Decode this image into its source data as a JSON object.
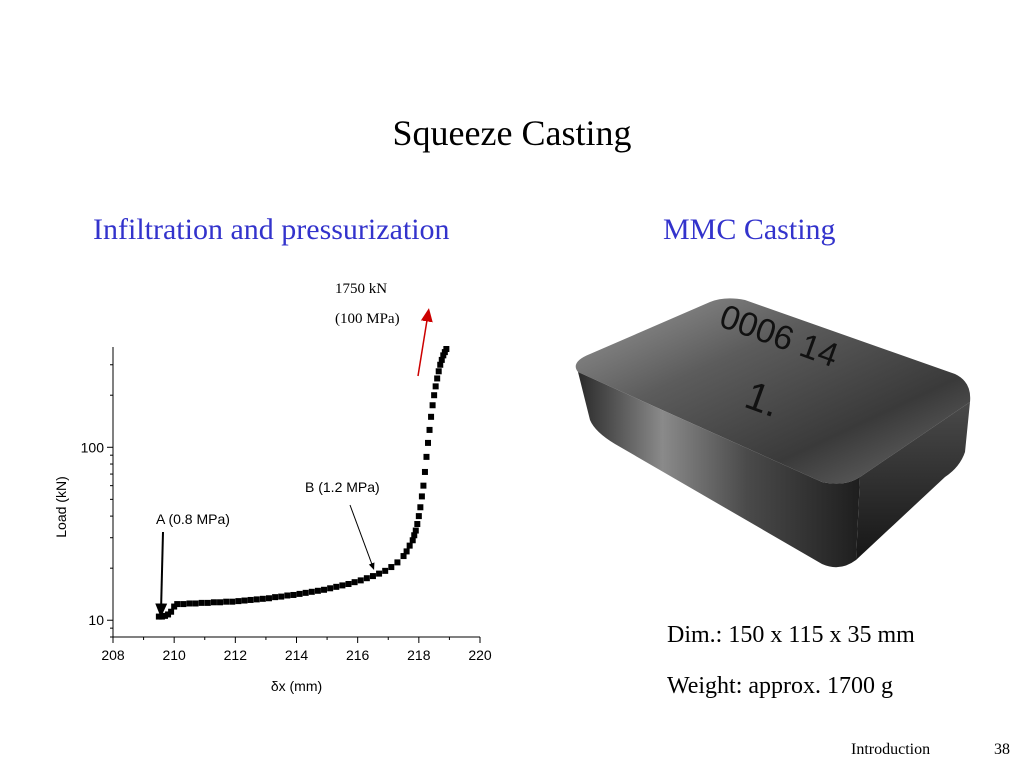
{
  "slide": {
    "title": "Squeeze Casting",
    "left_heading": "Infiltration and pressurization",
    "right_heading": "MMC Casting",
    "annotation_load": "1750 kN",
    "annotation_pressure": "(100 MPa)",
    "dimensions": "Dim.: 150 x 115 x 35 mm",
    "weight": "Weight: approx. 1700 g",
    "photo_marking_1": "0006 14",
    "photo_marking_2": "1.",
    "footer_section": "Introduction",
    "footer_page": "38"
  },
  "colors": {
    "heading_blue": "#3333cc",
    "data_points": "#000000",
    "arrow_red": "#cc0000"
  },
  "chart_data": {
    "type": "scatter",
    "title": "",
    "xlabel": "δx (mm)",
    "ylabel": "Load (kN)",
    "xlim": [
      208,
      220
    ],
    "ylim": [
      8,
      380
    ],
    "y_scale": "log",
    "x_ticks": [
      208,
      210,
      212,
      214,
      216,
      218,
      220
    ],
    "y_ticks": [
      10,
      100
    ],
    "grid": false,
    "legend": "none",
    "annotations": [
      {
        "text": "A (0.8 MPa)",
        "x": 209.7,
        "y": 10.8
      },
      {
        "text": "B (1.2 MPa)",
        "x": 216.6,
        "y": 20
      }
    ],
    "series": [
      {
        "x": [
          209.5,
          209.6,
          209.7,
          209.8,
          209.9,
          210.0,
          210.1,
          210.3,
          210.5,
          210.7,
          210.9,
          211.1,
          211.3,
          211.5,
          211.7,
          211.9,
          212.1,
          212.3,
          212.5,
          212.7,
          212.9,
          213.1,
          213.3,
          213.5,
          213.7,
          213.9,
          214.1,
          214.3,
          214.5,
          214.7,
          214.9,
          215.1,
          215.3,
          215.5,
          215.7,
          215.9,
          216.1,
          216.3,
          216.5,
          216.7,
          216.9,
          217.1,
          217.3,
          217.5,
          217.6,
          217.7,
          217.8,
          217.85,
          217.9,
          217.95,
          218.0,
          218.05,
          218.1,
          218.15,
          218.2,
          218.25,
          218.3,
          218.35,
          218.4,
          218.45,
          218.5,
          218.55,
          218.6,
          218.65,
          218.7,
          218.75,
          218.8,
          218.85,
          218.9
        ],
        "y": [
          10.5,
          10.5,
          10.6,
          10.8,
          11.2,
          12.0,
          12.4,
          12.4,
          12.5,
          12.5,
          12.6,
          12.6,
          12.7,
          12.7,
          12.8,
          12.8,
          12.9,
          13.0,
          13.1,
          13.2,
          13.3,
          13.4,
          13.6,
          13.7,
          13.9,
          14.0,
          14.2,
          14.4,
          14.6,
          14.8,
          15.0,
          15.3,
          15.6,
          15.9,
          16.2,
          16.6,
          17.0,
          17.5,
          18.0,
          18.6,
          19.3,
          20.3,
          21.6,
          23.5,
          25,
          27,
          29,
          31,
          33,
          36,
          40,
          45,
          52,
          60,
          72,
          88,
          106,
          126,
          150,
          175,
          200,
          225,
          250,
          275,
          300,
          320,
          340,
          355,
          370
        ]
      }
    ]
  }
}
